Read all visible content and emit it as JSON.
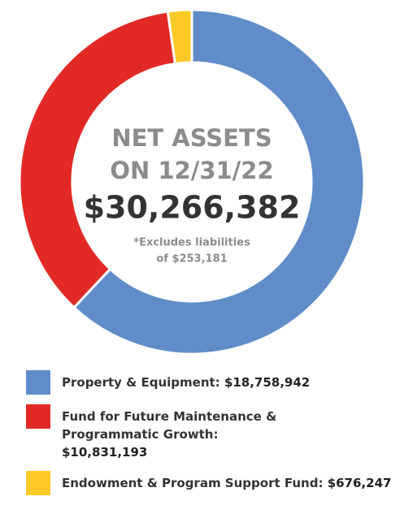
{
  "chart_data": {
    "type": "pie",
    "center_lines": [
      "NET ASSETS",
      "ON 12/31/22"
    ],
    "total_label": "$30,266,382",
    "note_lines": [
      "*Excludes liabilities",
      "of $253,181"
    ],
    "series": [
      {
        "name": "Property & Equipment:",
        "color": "#608dc9",
        "value": 18758942,
        "value_label": "$18,758,942"
      },
      {
        "name": "Fund for Future Maintenance & Programmatic Growth:",
        "color": "#e12a26",
        "value": 10831193,
        "value_label": "$10,831,193"
      },
      {
        "name": "Endowment & Program Support Fund:",
        "color": "#fcc927",
        "value": 676247,
        "value_label": "$676,247"
      }
    ]
  }
}
